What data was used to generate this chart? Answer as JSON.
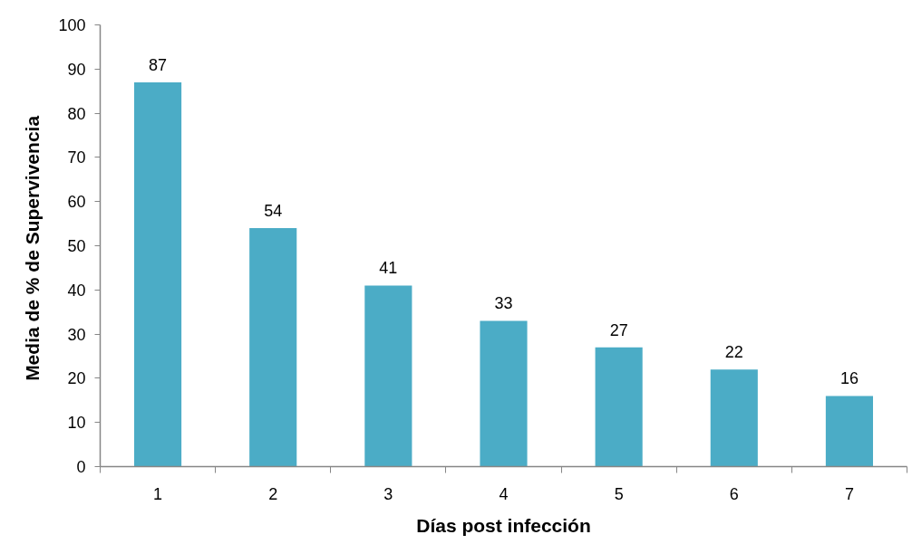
{
  "chart_data": {
    "type": "bar",
    "xlabel": "Días post infección",
    "ylabel": "Media de %  de Supervivencia",
    "categories": [
      "1",
      "2",
      "3",
      "4",
      "5",
      "6",
      "7"
    ],
    "values": [
      87,
      54,
      41,
      33,
      27,
      22,
      16
    ],
    "color": "#4bacc6",
    "ylim": [
      0,
      100
    ],
    "yticks": [
      0,
      10,
      20,
      30,
      40,
      50,
      60,
      70,
      80,
      90,
      100
    ],
    "data_labels": true
  }
}
